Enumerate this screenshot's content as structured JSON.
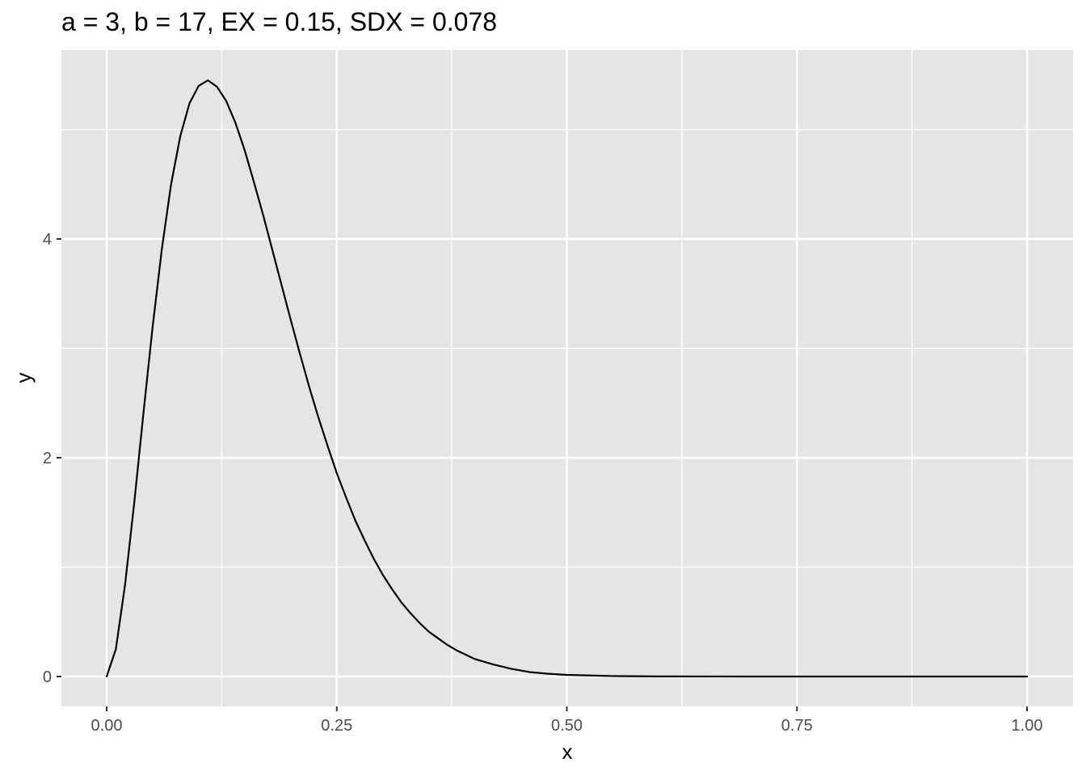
{
  "chart_data": {
    "type": "line",
    "title": "a = 3, b = 17, EX = 0.15, SDX = 0.078",
    "xlabel": "x",
    "ylabel": "y",
    "xlim": [
      0,
      1
    ],
    "ylim": [
      0,
      5.45
    ],
    "x_ticks": [
      0,
      0.25,
      0.5,
      0.75,
      1
    ],
    "x_tick_labels": [
      "0.00",
      "0.25",
      "0.50",
      "0.75",
      "1.00"
    ],
    "y_ticks": [
      0,
      2,
      4
    ],
    "y_tick_labels": [
      "0",
      "2",
      "4"
    ],
    "grid": true,
    "panel_background": "#e5e5e5",
    "grid_color": "#ffffff",
    "line_color": "#000000",
    "series": [
      {
        "x": [
          0,
          0.01,
          0.02,
          0.03,
          0.04,
          0.05,
          0.06,
          0.07,
          0.08,
          0.09,
          0.1,
          0.11,
          0.12,
          0.13,
          0.14,
          0.15,
          0.16,
          0.17,
          0.18,
          0.19,
          0.2,
          0.21,
          0.22,
          0.23,
          0.24,
          0.25,
          0.26,
          0.27,
          0.28,
          0.29,
          0.3,
          0.31,
          0.32,
          0.33,
          0.34,
          0.35,
          0.36,
          0.37,
          0.38,
          0.39,
          0.4,
          0.42,
          0.44,
          0.46,
          0.48,
          0.5,
          0.55,
          0.6,
          0.7,
          0.8,
          0.9,
          1
        ],
        "values": [
          0,
          0.25,
          0.84,
          1.59,
          2.41,
          3.2,
          3.91,
          4.5,
          4.94,
          5.24,
          5.4,
          5.45,
          5.39,
          5.26,
          5.06,
          4.81,
          4.52,
          4.22,
          3.9,
          3.58,
          3.26,
          2.95,
          2.65,
          2.37,
          2.11,
          1.86,
          1.64,
          1.43,
          1.25,
          1.08,
          0.93,
          0.8,
          0.68,
          0.58,
          0.49,
          0.41,
          0.35,
          0.29,
          0.24,
          0.2,
          0.16,
          0.11,
          0.07,
          0.04,
          0.025,
          0.015,
          0.004,
          0.001,
          0,
          0,
          0,
          0
        ]
      }
    ]
  }
}
